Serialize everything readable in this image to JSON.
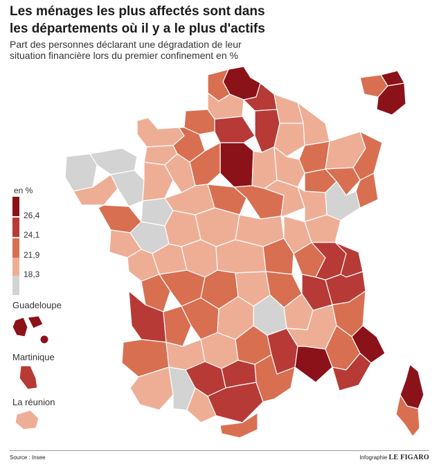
{
  "title": "Les ménages les plus affectés sont dans les départements où il y a le plus d'actifs",
  "subtitle": "Part des personnes déclarant une dégradation de leur situation financière lors du premier confinement en %",
  "legend": {
    "unit": "en %",
    "thresholds": [
      "26,4",
      "24,1",
      "21,9",
      "18,3"
    ],
    "colors": [
      "#8b1219",
      "#b73a36",
      "#d86f51",
      "#eeae96",
      "#d3d3d3"
    ]
  },
  "overseas": {
    "guadeloupe": "Guadeloupe",
    "martinique": "Martinique",
    "reunion": "La réunion"
  },
  "footer": {
    "source": "Source : Insee",
    "credit_prefix": "Infographie",
    "credit_brand": "LE FIGARO"
  }
}
